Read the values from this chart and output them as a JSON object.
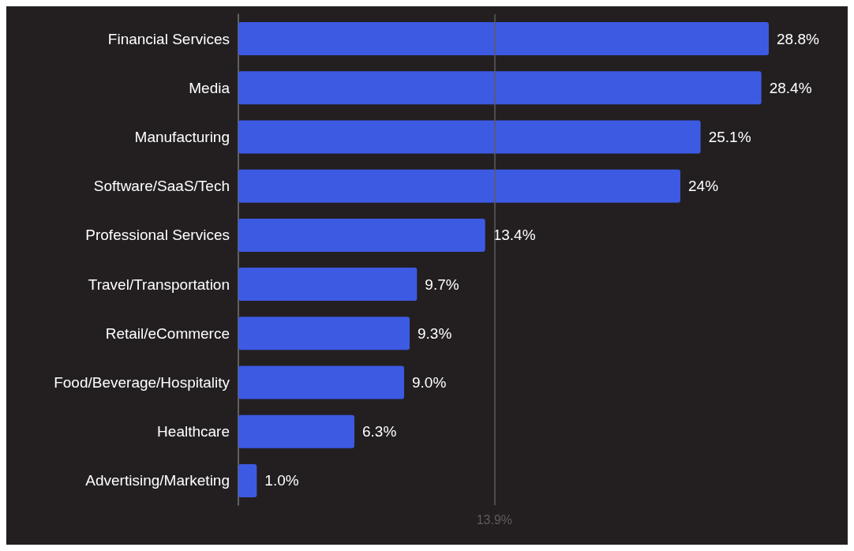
{
  "chart_data": {
    "type": "bar",
    "orientation": "horizontal",
    "categories": [
      "Financial Services",
      "Media",
      "Manufacturing",
      "Software/SaaS/Tech",
      "Professional Services",
      "Travel/Transportation",
      "Retail/eCommerce",
      "Food/Beverage/Hospitality",
      "Healthcare",
      "Advertising/Marketing"
    ],
    "values": [
      28.8,
      28.4,
      25.1,
      24,
      13.4,
      9.7,
      9.3,
      9.0,
      6.3,
      1.0
    ],
    "value_labels": [
      "28.8%",
      "28.4%",
      "25.1%",
      "24%",
      "13.4%",
      "9.7%",
      "9.3%",
      "9.0%",
      "6.3%",
      "1.0%"
    ],
    "color": "#3d5ae3",
    "ref_lines": [
      {
        "axis": "x",
        "value": 13.9,
        "label": "13.9%",
        "color": "#5e5b5c"
      }
    ],
    "grid": false
  }
}
